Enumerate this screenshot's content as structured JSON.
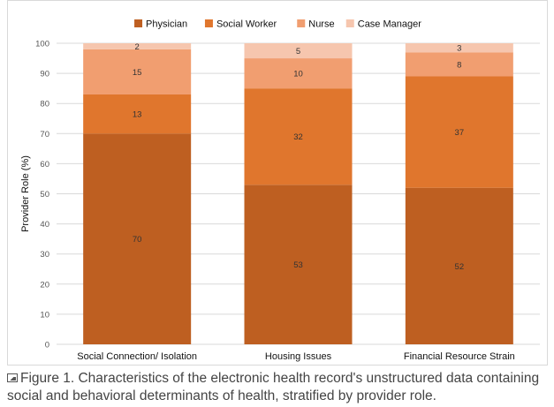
{
  "chart_data": {
    "type": "bar",
    "stacked": true,
    "categories": [
      "Social Connection/ Isolation",
      "Housing Issues",
      "Financial Resource Strain"
    ],
    "series": [
      {
        "name": "Physician",
        "values": [
          70,
          53,
          52
        ],
        "color": "#be5f21"
      },
      {
        "name": "Social Worker",
        "values": [
          13,
          32,
          37
        ],
        "color": "#e0762d"
      },
      {
        "name": "Nurse",
        "values": [
          15,
          10,
          8
        ],
        "color": "#f19e70"
      },
      {
        "name": "Case Manager",
        "values": [
          2,
          5,
          3
        ],
        "color": "#f6c6ae"
      }
    ],
    "ylabel": "Provider Role (%)",
    "ylim": [
      0,
      100
    ],
    "yticks": [
      0,
      10,
      20,
      30,
      40,
      50,
      60,
      70,
      80,
      90,
      100
    ],
    "grid": true,
    "legend": "top-center"
  },
  "caption": {
    "text": "Figure 1. Characteristics of the electronic health record's unstructured data containing social and behavioral determinants of health, stratified by provider role."
  }
}
